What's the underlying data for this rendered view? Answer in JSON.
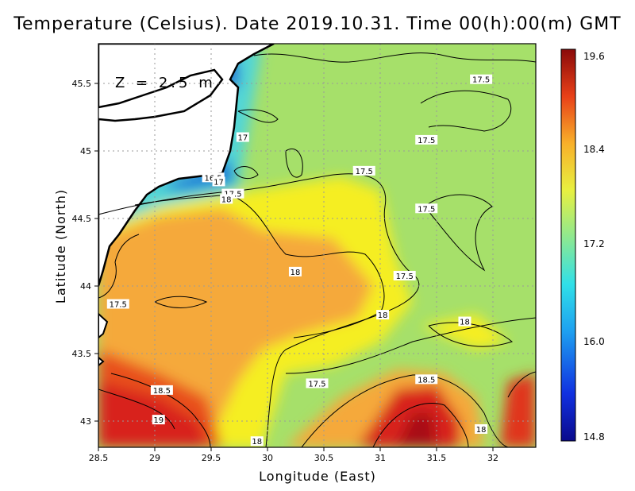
{
  "title": "Temperature (Celsius). Date 2019.10.31. Time 00(h):00(m) GMT",
  "depth_label": "Z = 2.5 m",
  "x_axis": {
    "label": "Longitude (East)",
    "range": [
      28.5,
      32.5
    ],
    "ticks": [
      "28.5",
      "29",
      "29.5",
      "30",
      "30.5",
      "31",
      "31.5",
      "32"
    ]
  },
  "y_axis": {
    "label": "Latitude (North)",
    "range": [
      42.8,
      45.8
    ],
    "ticks": [
      "43",
      "43.5",
      "44",
      "44.5",
      "45",
      "45.5"
    ]
  },
  "colorbar": {
    "range": [
      14.8,
      19.6
    ],
    "ticks": [
      "19.6",
      "18.4",
      "17.2",
      "16.0",
      "14.8"
    ]
  },
  "contour_labels": [
    {
      "text": "17.5",
      "lon": 32.0,
      "lat": 45.53
    },
    {
      "text": "17.5",
      "lon": 31.5,
      "lat": 45.08
    },
    {
      "text": "17",
      "lon": 29.82,
      "lat": 45.1
    },
    {
      "text": "17.5",
      "lon": 30.93,
      "lat": 44.85
    },
    {
      "text": "16.5",
      "lon": 29.55,
      "lat": 44.8
    },
    {
      "text": "17",
      "lon": 29.6,
      "lat": 44.77
    },
    {
      "text": "17.5",
      "lon": 29.73,
      "lat": 44.68
    },
    {
      "text": "18",
      "lon": 29.67,
      "lat": 44.64
    },
    {
      "text": "17.5",
      "lon": 31.5,
      "lat": 44.57
    },
    {
      "text": "18",
      "lon": 30.3,
      "lat": 44.1
    },
    {
      "text": "17.5",
      "lon": 31.3,
      "lat": 44.07
    },
    {
      "text": "17.5",
      "lon": 28.68,
      "lat": 43.86
    },
    {
      "text": "18",
      "lon": 31.1,
      "lat": 43.78
    },
    {
      "text": "18",
      "lon": 31.85,
      "lat": 43.73
    },
    {
      "text": "17.5",
      "lon": 30.5,
      "lat": 43.27
    },
    {
      "text": "18.5",
      "lon": 31.5,
      "lat": 43.3
    },
    {
      "text": "18.5",
      "lon": 29.08,
      "lat": 43.22
    },
    {
      "text": "19",
      "lon": 29.05,
      "lat": 43.0
    },
    {
      "text": "18",
      "lon": 32.0,
      "lat": 42.93
    },
    {
      "text": "18",
      "lon": 29.95,
      "lat": 42.84
    }
  ],
  "colors": {
    "warm_core": "#c8141c",
    "warm": "#f59a2c",
    "mid": "#f5ee23",
    "cool": "#a6e06a",
    "cold": "#36c8e8",
    "coldest": "#1f5ad6",
    "land": "#ffffff"
  }
}
